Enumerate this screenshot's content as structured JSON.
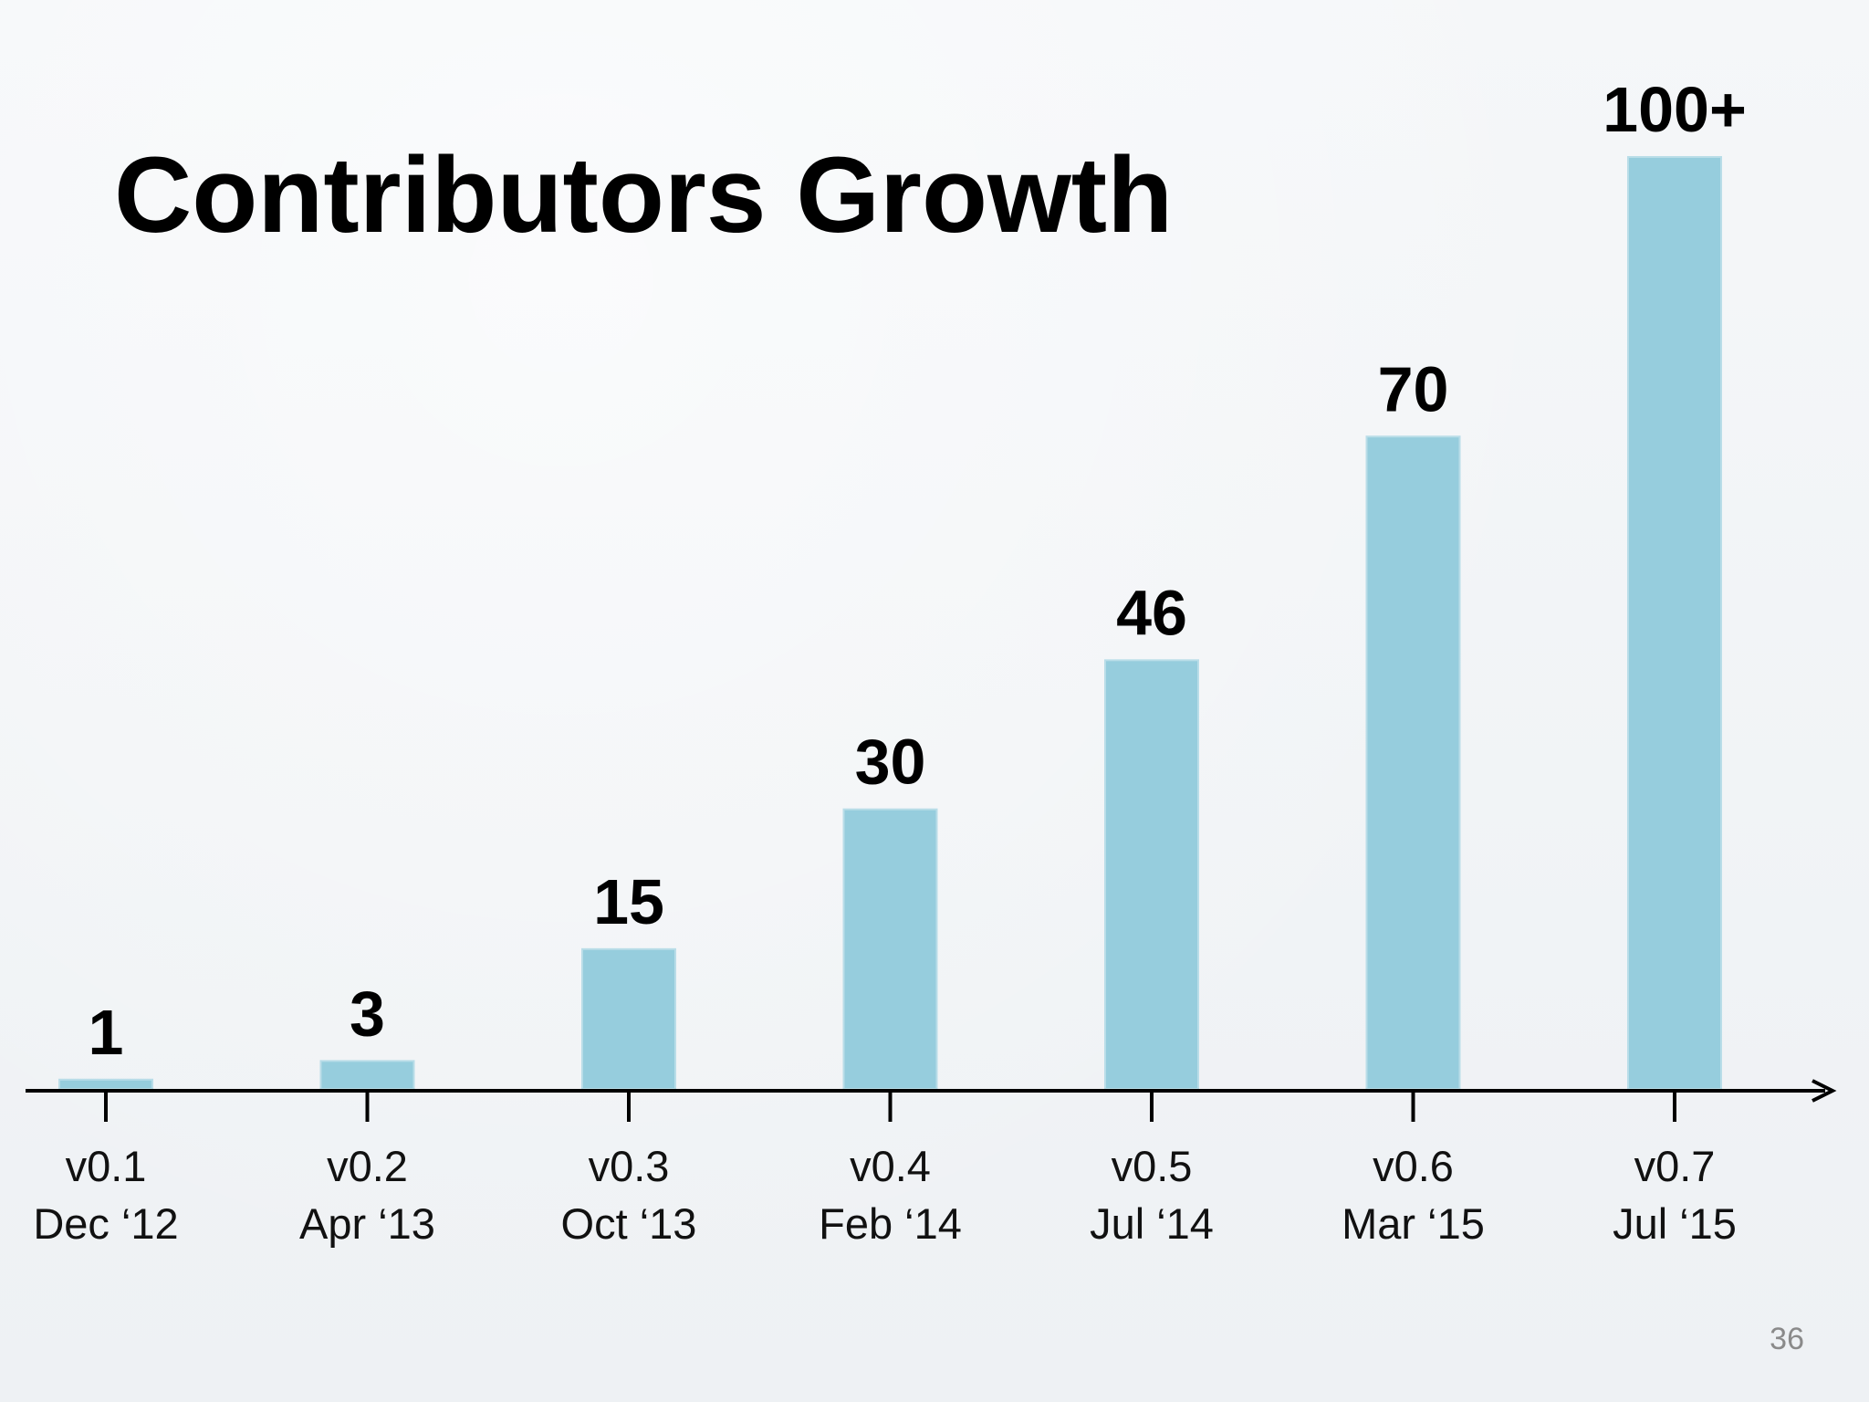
{
  "slide": {
    "title": "Contributors Growth",
    "page_number": "36"
  },
  "chart_data": {
    "type": "bar",
    "categories": [
      {
        "version": "v0.1",
        "date": "Dec ‘12"
      },
      {
        "version": "v0.2",
        "date": "Apr ‘13"
      },
      {
        "version": "v0.3",
        "date": "Oct ‘13"
      },
      {
        "version": "v0.4",
        "date": "Feb ‘14"
      },
      {
        "version": "v0.5",
        "date": "Jul ‘14"
      },
      {
        "version": "v0.6",
        "date": "Mar ‘15"
      },
      {
        "version": "v0.7",
        "date": "Jul ‘15"
      }
    ],
    "values": [
      1,
      3,
      15,
      30,
      46,
      70,
      100
    ],
    "data_labels": [
      "1",
      "3",
      "15",
      "30",
      "46",
      "70",
      "100+"
    ],
    "title": "Contributors Growth",
    "xlabel": "",
    "ylabel": "",
    "ylim": [
      0,
      100
    ],
    "grid": false,
    "legend": "none",
    "bar_color": "#96cddd",
    "axis_color": "#000000"
  }
}
